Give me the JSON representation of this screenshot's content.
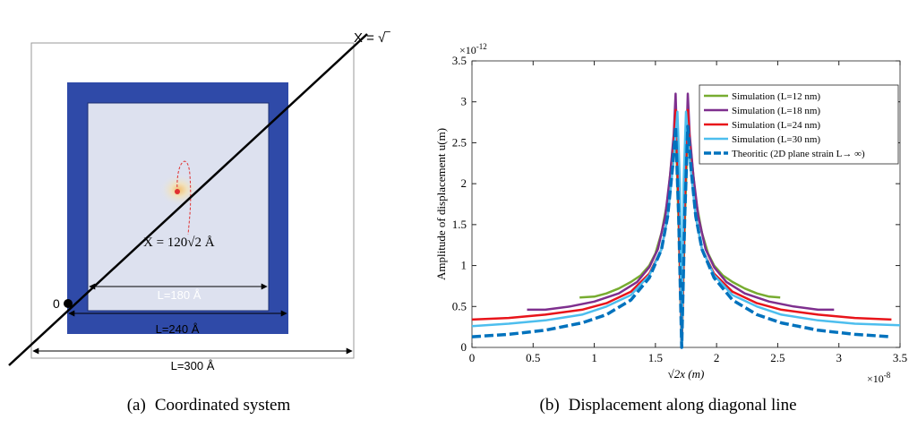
{
  "figure_a": {
    "axis_label": "X = √‾",
    "point_label": "X = 120√2 Å",
    "origin_label": "0",
    "inner_label": "L=180 Å",
    "middle_label": "L=240 Å",
    "outer_label": "L=300 Å"
  },
  "captions": [
    {
      "label": "(a)",
      "text": "Coordinated system"
    },
    {
      "label": "(b)",
      "text": "Displacement along diagonal line"
    }
  ],
  "chart_data": {
    "type": "line",
    "x_label": "√2x (m)",
    "y_label": "Amplitude of displacement u(m)",
    "x_multiplier": {
      "base": "×10",
      "exponent": "-8"
    },
    "y_multiplier": {
      "base": "×10",
      "exponent": "-12"
    },
    "xlim": [
      0,
      3.5
    ],
    "ylim": [
      0,
      3.5
    ],
    "xticks": [
      0,
      0.5,
      1,
      1.5,
      2,
      2.5,
      3,
      3.5
    ],
    "yticks": [
      0,
      0.5,
      1,
      1.5,
      2,
      2.5,
      3,
      3.5
    ],
    "legend": "upper right",
    "series": [
      {
        "name": "Simulation (L=12 nm)",
        "color": "#77ac30",
        "dashed": false,
        "x": [
          0.88,
          1.0,
          1.1,
          1.2,
          1.3,
          1.38,
          1.45,
          1.5,
          1.55,
          1.6,
          1.64,
          1.665,
          1.69,
          1.715,
          1.74,
          1.765,
          1.79,
          1.83,
          1.88,
          1.93,
          1.98,
          2.05,
          2.13,
          2.23,
          2.33,
          2.43,
          2.52
        ],
        "values": [
          0.61,
          0.62,
          0.66,
          0.72,
          0.8,
          0.88,
          1.0,
          1.15,
          1.4,
          1.8,
          2.4,
          2.7,
          1.5,
          0.02,
          1.5,
          2.7,
          2.4,
          1.8,
          1.4,
          1.15,
          1.0,
          0.88,
          0.8,
          0.72,
          0.66,
          0.62,
          0.61
        ]
      },
      {
        "name": "Simulation (L=18 nm)",
        "color": "#7e2f8e",
        "dashed": false,
        "x": [
          0.45,
          0.6,
          0.8,
          1.0,
          1.2,
          1.35,
          1.45,
          1.52,
          1.58,
          1.62,
          1.65,
          1.665,
          1.69,
          1.715,
          1.74,
          1.765,
          1.78,
          1.81,
          1.85,
          1.91,
          1.98,
          2.08,
          2.23,
          2.43,
          2.63,
          2.83,
          2.96
        ],
        "values": [
          0.46,
          0.46,
          0.5,
          0.56,
          0.66,
          0.8,
          0.98,
          1.2,
          1.6,
          2.1,
          2.6,
          3.1,
          1.8,
          0.02,
          1.8,
          3.1,
          2.6,
          2.1,
          1.6,
          1.2,
          0.98,
          0.8,
          0.66,
          0.56,
          0.5,
          0.46,
          0.46
        ]
      },
      {
        "name": "Simulation (L=24 nm)",
        "color": "#e8141a",
        "dashed": false,
        "x": [
          0,
          0.3,
          0.6,
          0.9,
          1.1,
          1.3,
          1.45,
          1.55,
          1.6,
          1.64,
          1.665,
          1.69,
          1.715,
          1.74,
          1.765,
          1.79,
          1.83,
          1.88,
          1.98,
          2.13,
          2.33,
          2.53,
          2.83,
          3.13,
          3.43
        ],
        "values": [
          0.34,
          0.36,
          0.4,
          0.46,
          0.54,
          0.68,
          0.9,
          1.2,
          1.6,
          2.2,
          2.9,
          1.8,
          0.02,
          1.8,
          2.9,
          2.2,
          1.6,
          1.2,
          0.9,
          0.68,
          0.54,
          0.46,
          0.4,
          0.36,
          0.34
        ]
      },
      {
        "name": "Simulation (L=30 nm)",
        "color": "#4dbeee",
        "dashed": false,
        "x": [
          0,
          0.3,
          0.6,
          0.9,
          1.1,
          1.3,
          1.45,
          1.55,
          1.6,
          1.65,
          1.68,
          1.7,
          1.715,
          1.73,
          1.75,
          1.78,
          1.83,
          1.88,
          1.98,
          2.13,
          2.33,
          2.53,
          2.83,
          3.13,
          3.5
        ],
        "values": [
          0.26,
          0.29,
          0.33,
          0.4,
          0.5,
          0.64,
          0.88,
          1.2,
          1.6,
          2.3,
          2.88,
          2.0,
          0.02,
          2.0,
          2.88,
          2.3,
          1.6,
          1.2,
          0.88,
          0.64,
          0.5,
          0.4,
          0.33,
          0.29,
          0.27
        ]
      },
      {
        "name": "Theoritic (2D plane strain L→ ∞)",
        "color": "#0072bd",
        "dashed": true,
        "x": [
          0,
          0.3,
          0.6,
          0.9,
          1.1,
          1.3,
          1.45,
          1.55,
          1.6,
          1.64,
          1.665,
          1.69,
          1.715,
          1.74,
          1.765,
          1.79,
          1.83,
          1.88,
          1.98,
          2.13,
          2.33,
          2.53,
          2.83,
          3.13,
          3.43
        ],
        "values": [
          0.13,
          0.16,
          0.21,
          0.3,
          0.4,
          0.58,
          0.85,
          1.2,
          1.6,
          2.2,
          2.7,
          1.6,
          0.0,
          1.6,
          2.7,
          2.2,
          1.6,
          1.2,
          0.85,
          0.58,
          0.4,
          0.3,
          0.21,
          0.16,
          0.13
        ]
      }
    ]
  }
}
